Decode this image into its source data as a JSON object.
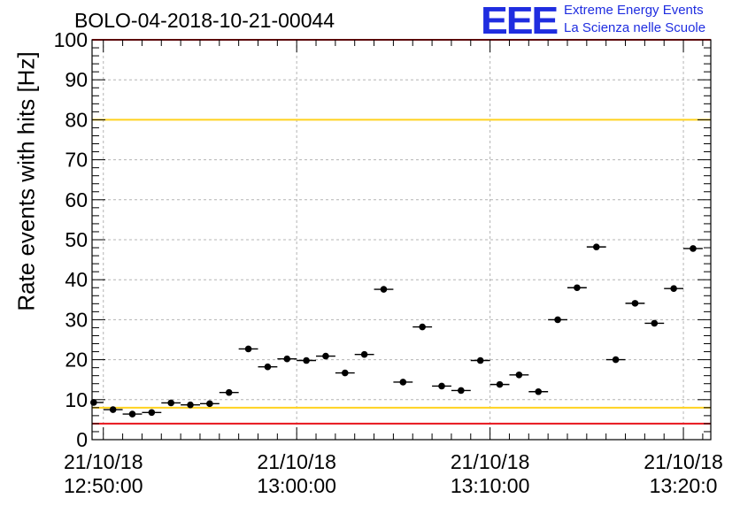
{
  "title": "BOLO-04-2018-10-21-00044",
  "logo": {
    "mark": "EEE",
    "line1": "Extreme Energy Events",
    "line2": "La Scienza nelle Scuole",
    "color": "#1f2de0"
  },
  "chart_data": {
    "type": "scatter",
    "title": "BOLO-04-2018-10-21-00044",
    "ylabel": "Rate events with hits [Hz]",
    "xlabel": "",
    "ylim": [
      0,
      100
    ],
    "yticks": [
      0,
      10,
      20,
      30,
      40,
      50,
      60,
      70,
      80,
      90,
      100
    ],
    "xticks": [
      {
        "date": "21/10/18",
        "time": "12:50:00"
      },
      {
        "date": "21/10/18",
        "time": "13:00:00"
      },
      {
        "date": "21/10/18",
        "time": "13:10:00"
      },
      {
        "date": "21/10/18",
        "time": "13:20:0"
      }
    ],
    "xlim": [
      "12:49:25",
      "13:21:25"
    ],
    "grid": true,
    "bin_minutes": 1,
    "reference_lines": [
      {
        "y": 80,
        "color": "#ffd21f"
      },
      {
        "y": 8,
        "color": "#ffd21f"
      },
      {
        "y": 100,
        "color": "#e8141c"
      },
      {
        "y": 4,
        "color": "#e8141c"
      }
    ],
    "marker_color": "#000000",
    "points": [
      {
        "x": "12:49:30",
        "y": 9.3
      },
      {
        "x": "12:50:30",
        "y": 7.5
      },
      {
        "x": "12:51:30",
        "y": 6.4
      },
      {
        "x": "12:52:30",
        "y": 6.8
      },
      {
        "x": "12:53:30",
        "y": 9.2
      },
      {
        "x": "12:54:30",
        "y": 8.7
      },
      {
        "x": "12:55:30",
        "y": 9.0
      },
      {
        "x": "12:56:30",
        "y": 11.8
      },
      {
        "x": "12:57:30",
        "y": 22.7
      },
      {
        "x": "12:58:30",
        "y": 18.2
      },
      {
        "x": "12:59:30",
        "y": 20.2
      },
      {
        "x": "13:00:30",
        "y": 19.8
      },
      {
        "x": "13:01:30",
        "y": 20.9
      },
      {
        "x": "13:02:30",
        "y": 16.7
      },
      {
        "x": "13:03:30",
        "y": 21.3
      },
      {
        "x": "13:04:30",
        "y": 37.6
      },
      {
        "x": "13:05:30",
        "y": 14.4
      },
      {
        "x": "13:06:30",
        "y": 28.2
      },
      {
        "x": "13:07:30",
        "y": 13.4
      },
      {
        "x": "13:08:30",
        "y": 12.3
      },
      {
        "x": "13:09:30",
        "y": 19.8
      },
      {
        "x": "13:10:30",
        "y": 13.8
      },
      {
        "x": "13:11:30",
        "y": 16.2
      },
      {
        "x": "13:12:30",
        "y": 12.0
      },
      {
        "x": "13:13:30",
        "y": 30.0
      },
      {
        "x": "13:14:30",
        "y": 38.0
      },
      {
        "x": "13:15:30",
        "y": 48.2
      },
      {
        "x": "13:16:30",
        "y": 20.0
      },
      {
        "x": "13:17:30",
        "y": 34.1
      },
      {
        "x": "13:18:30",
        "y": 29.1
      },
      {
        "x": "13:19:30",
        "y": 37.8
      },
      {
        "x": "13:20:30",
        "y": 47.8
      }
    ]
  }
}
